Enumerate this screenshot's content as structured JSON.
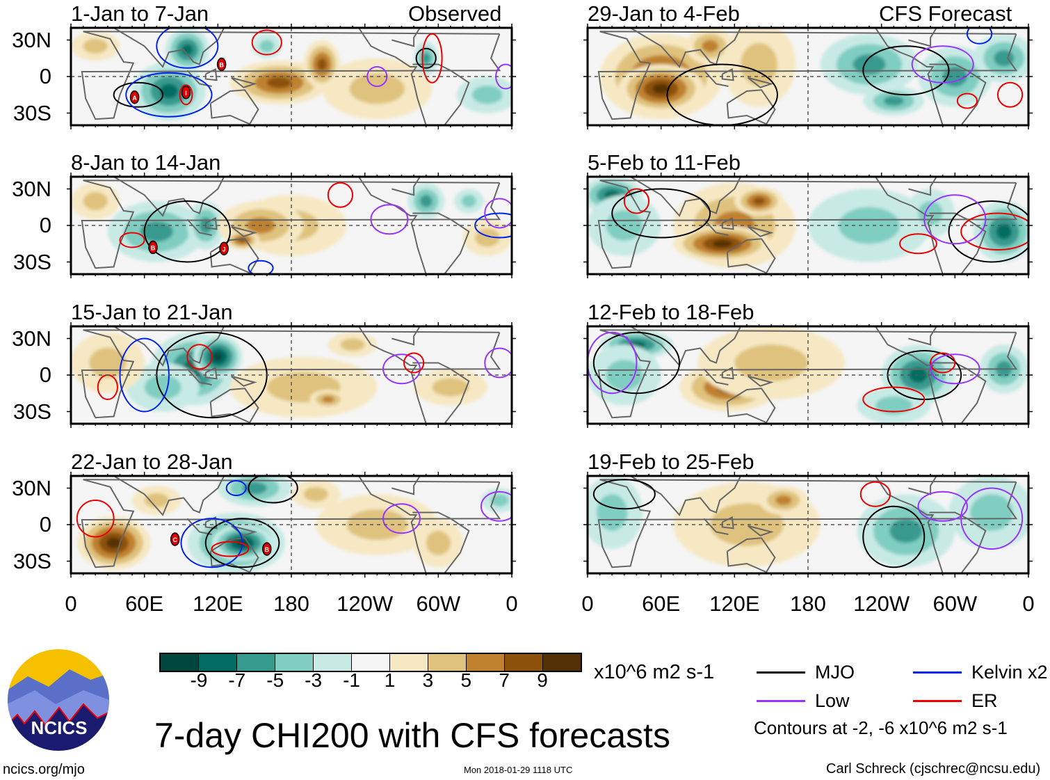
{
  "figure": {
    "title": "7-day CHI200 with CFS forecasts",
    "units": "x10^6 m2 s-1",
    "contour_note": "Contours at -2, -6 x10^6 m2 s-1",
    "left_column_label": "Observed",
    "right_column_label": "CFS Forecast",
    "website": "ncics.org/mjo",
    "timestamp": "Mon 2018-01-29 1118 UTC",
    "author": "Carl Schreck (cjschrec@ncsu.edu)",
    "logo_text": "NCICS"
  },
  "axes": {
    "lat_labels": [
      "30N",
      "0",
      "30S"
    ],
    "lon_labels": [
      "0",
      "60E",
      "120E",
      "180",
      "120W",
      "60W",
      "0"
    ]
  },
  "colorbar": {
    "colors": [
      "#01463c",
      "#016d62",
      "#379a8f",
      "#80cdc1",
      "#c7eae5",
      "#f5f5f5",
      "#f6e8c3",
      "#dfc27d",
      "#bf812d",
      "#8c510a",
      "#543005"
    ],
    "ticks": [
      "-9",
      "-7",
      "-5",
      "-3",
      "-1",
      "1",
      "3",
      "5",
      "7",
      "9"
    ]
  },
  "legend": [
    {
      "label": "MJO",
      "color": "#000000"
    },
    {
      "label": "Kelvin x2",
      "color": "#0022ee"
    },
    {
      "label": "Low",
      "color": "#9933ff"
    },
    {
      "label": "ER",
      "color": "#ee0000"
    }
  ],
  "chart_data": {
    "type": "heatmap",
    "lon_range": [
      0,
      360
    ],
    "lat_range": [
      -40,
      40
    ],
    "panels": [
      {
        "title": "1-Jan to 7-Jan",
        "column": "Observed",
        "anomalies": [
          [
            80,
            -12,
            30,
            24,
            -7
          ],
          [
            95,
            22,
            18,
            18,
            -7
          ],
          [
            20,
            25,
            20,
            12,
            2
          ],
          [
            340,
            -15,
            25,
            15,
            -2
          ],
          [
            250,
            -10,
            45,
            25,
            3
          ],
          [
            170,
            -5,
            40,
            18,
            7
          ],
          [
            205,
            10,
            15,
            20,
            6
          ],
          [
            290,
            15,
            10,
            14,
            -5
          ],
          [
            160,
            25,
            12,
            10,
            -3
          ]
        ],
        "contours": [
          [
            "mjo",
            55,
            -15,
            20,
            10
          ],
          [
            "mjo",
            290,
            15,
            8,
            8
          ],
          [
            "kelvin",
            80,
            -15,
            35,
            18
          ],
          [
            "kelvin",
            95,
            25,
            25,
            18
          ],
          [
            "er",
            94,
            -15,
            5,
            8
          ],
          [
            "er",
            160,
            28,
            12,
            10
          ],
          [
            "er",
            295,
            15,
            8,
            20
          ],
          [
            "low",
            250,
            0,
            8,
            8
          ],
          [
            "low",
            355,
            0,
            8,
            10
          ]
        ],
        "storms": [
          [
            "A",
            52,
            -17
          ],
          [
            "I",
            94,
            -13
          ],
          [
            "B",
            123,
            10
          ]
        ]
      },
      {
        "title": "8-Jan to 14-Jan",
        "column": "Observed",
        "anomalies": [
          [
            20,
            20,
            20,
            15,
            3
          ],
          [
            70,
            -5,
            40,
            25,
            -5
          ],
          [
            110,
            0,
            15,
            20,
            -4
          ],
          [
            180,
            0,
            45,
            25,
            3
          ],
          [
            155,
            0,
            35,
            20,
            5
          ],
          [
            140,
            -12,
            14,
            8,
            7
          ],
          [
            290,
            20,
            15,
            15,
            -4
          ],
          [
            325,
            20,
            12,
            10,
            -3
          ],
          [
            340,
            -10,
            20,
            15,
            2
          ]
        ],
        "contours": [
          [
            "mjo",
            95,
            -5,
            35,
            25
          ],
          [
            "er",
            50,
            -12,
            10,
            6
          ],
          [
            "er",
            220,
            25,
            10,
            10
          ],
          [
            "kelvin",
            155,
            -35,
            10,
            6
          ],
          [
            "kelvin",
            350,
            0,
            20,
            10
          ],
          [
            "low",
            260,
            5,
            15,
            12
          ],
          [
            "low",
            350,
            10,
            12,
            12
          ]
        ],
        "storms": [
          [
            "B",
            67,
            -18
          ],
          [
            "J",
            125,
            -19
          ]
        ]
      },
      {
        "title": "15-Jan to 21-Jan",
        "column": "Observed",
        "anomalies": [
          [
            100,
            5,
            35,
            30,
            -7
          ],
          [
            120,
            15,
            20,
            18,
            -9
          ],
          [
            75,
            -10,
            30,
            20,
            -3
          ],
          [
            190,
            -10,
            60,
            25,
            3
          ],
          [
            210,
            -20,
            15,
            8,
            5
          ],
          [
            30,
            10,
            30,
            25,
            2
          ],
          [
            310,
            -10,
            30,
            15,
            3
          ],
          [
            230,
            25,
            20,
            10,
            2
          ]
        ],
        "contours": [
          [
            "mjo",
            115,
            0,
            45,
            35
          ],
          [
            "kelvin",
            60,
            0,
            20,
            30
          ],
          [
            "er",
            105,
            15,
            10,
            10
          ],
          [
            "er",
            30,
            -10,
            8,
            10
          ],
          [
            "low",
            270,
            5,
            15,
            12
          ],
          [
            "low",
            350,
            10,
            12,
            12
          ],
          [
            "er",
            280,
            10,
            8,
            8
          ]
        ],
        "storms": []
      },
      {
        "title": "22-Jan to 28-Jan",
        "column": "Observed",
        "anomalies": [
          [
            35,
            -15,
            30,
            22,
            9
          ],
          [
            70,
            20,
            20,
            12,
            2
          ],
          [
            135,
            -15,
            40,
            25,
            -7
          ],
          [
            140,
            -15,
            25,
            15,
            -9
          ],
          [
            150,
            30,
            30,
            15,
            -5
          ],
          [
            250,
            0,
            50,
            25,
            2
          ],
          [
            300,
            -15,
            20,
            20,
            3
          ],
          [
            350,
            20,
            15,
            10,
            -2
          ],
          [
            200,
            25,
            20,
            12,
            2
          ]
        ],
        "contours": [
          [
            "mjo",
            140,
            -15,
            30,
            20
          ],
          [
            "mjo",
            165,
            30,
            20,
            12
          ],
          [
            "kelvin",
            115,
            -15,
            25,
            20
          ],
          [
            "kelvin",
            135,
            30,
            8,
            6
          ],
          [
            "er",
            20,
            5,
            15,
            15
          ],
          [
            "er",
            130,
            -20,
            15,
            6
          ],
          [
            "low",
            270,
            5,
            15,
            12
          ],
          [
            "low",
            350,
            15,
            15,
            12
          ]
        ],
        "storms": [
          [
            "C",
            85,
            -12
          ],
          [
            "B",
            160,
            -20
          ]
        ]
      },
      {
        "title": "29-Jan to 4-Feb",
        "column": "CFS Forecast",
        "anomalies": [
          [
            60,
            0,
            50,
            35,
            7
          ],
          [
            60,
            -10,
            35,
            20,
            9
          ],
          [
            100,
            25,
            20,
            15,
            5
          ],
          [
            140,
            10,
            30,
            35,
            3
          ],
          [
            230,
            10,
            40,
            25,
            -5
          ],
          [
            250,
            -20,
            25,
            12,
            -5
          ],
          [
            300,
            0,
            30,
            25,
            -5
          ],
          [
            340,
            15,
            25,
            20,
            -4
          ]
        ],
        "contours": [
          [
            "mjo",
            110,
            -15,
            45,
            25
          ],
          [
            "mjo",
            260,
            5,
            35,
            20
          ],
          [
            "low",
            290,
            10,
            25,
            15
          ],
          [
            "er",
            310,
            -20,
            8,
            6
          ],
          [
            "er",
            345,
            -15,
            10,
            10
          ],
          [
            "kelvin",
            320,
            35,
            10,
            8
          ]
        ],
        "storms": []
      },
      {
        "title": "5-Feb to 11-Feb",
        "column": "CFS Forecast",
        "anomalies": [
          [
            20,
            25,
            25,
            15,
            -7
          ],
          [
            30,
            0,
            30,
            25,
            -3
          ],
          [
            120,
            0,
            50,
            35,
            5
          ],
          [
            110,
            -15,
            40,
            15,
            9
          ],
          [
            140,
            20,
            20,
            12,
            7
          ],
          [
            230,
            0,
            50,
            30,
            -3
          ],
          [
            340,
            -5,
            25,
            25,
            -7
          ],
          [
            280,
            10,
            20,
            20,
            -3
          ]
        ],
        "contours": [
          [
            "mjo",
            330,
            -5,
            35,
            25
          ],
          [
            "mjo",
            60,
            10,
            40,
            20
          ],
          [
            "er",
            335,
            -5,
            30,
            15
          ],
          [
            "er",
            270,
            -15,
            15,
            8
          ],
          [
            "er",
            40,
            20,
            10,
            10
          ],
          [
            "low",
            300,
            5,
            25,
            20
          ]
        ],
        "storms": []
      },
      {
        "title": "12-Feb to 18-Feb",
        "column": "CFS Forecast",
        "anomalies": [
          [
            40,
            25,
            30,
            12,
            -7
          ],
          [
            30,
            0,
            30,
            25,
            -3
          ],
          [
            115,
            -10,
            40,
            20,
            7
          ],
          [
            160,
            20,
            15,
            10,
            7
          ],
          [
            150,
            10,
            60,
            30,
            3
          ],
          [
            270,
            0,
            30,
            25,
            -7
          ],
          [
            250,
            -25,
            30,
            15,
            -3
          ],
          [
            340,
            5,
            20,
            20,
            -5
          ]
        ],
        "contours": [
          [
            "mjo",
            275,
            0,
            30,
            20
          ],
          [
            "mjo",
            40,
            10,
            35,
            25
          ],
          [
            "er",
            250,
            -20,
            25,
            10
          ],
          [
            "er",
            290,
            10,
            10,
            8
          ],
          [
            "low",
            300,
            5,
            20,
            12
          ],
          [
            "low",
            20,
            10,
            20,
            25
          ]
        ],
        "storms": []
      },
      {
        "title": "19-Feb to 25-Feb",
        "column": "CFS Forecast",
        "anomalies": [
          [
            20,
            10,
            25,
            30,
            -3
          ],
          [
            110,
            -10,
            35,
            18,
            7
          ],
          [
            130,
            0,
            60,
            35,
            3
          ],
          [
            160,
            20,
            20,
            12,
            5
          ],
          [
            260,
            -5,
            40,
            30,
            -5
          ],
          [
            330,
            10,
            35,
            30,
            -3
          ]
        ],
        "contours": [
          [
            "mjo",
            250,
            -10,
            25,
            25
          ],
          [
            "mjo",
            30,
            25,
            25,
            12
          ],
          [
            "er",
            235,
            25,
            12,
            10
          ],
          [
            "low",
            330,
            5,
            25,
            25
          ],
          [
            "low",
            290,
            15,
            20,
            12
          ]
        ],
        "storms": []
      }
    ]
  }
}
